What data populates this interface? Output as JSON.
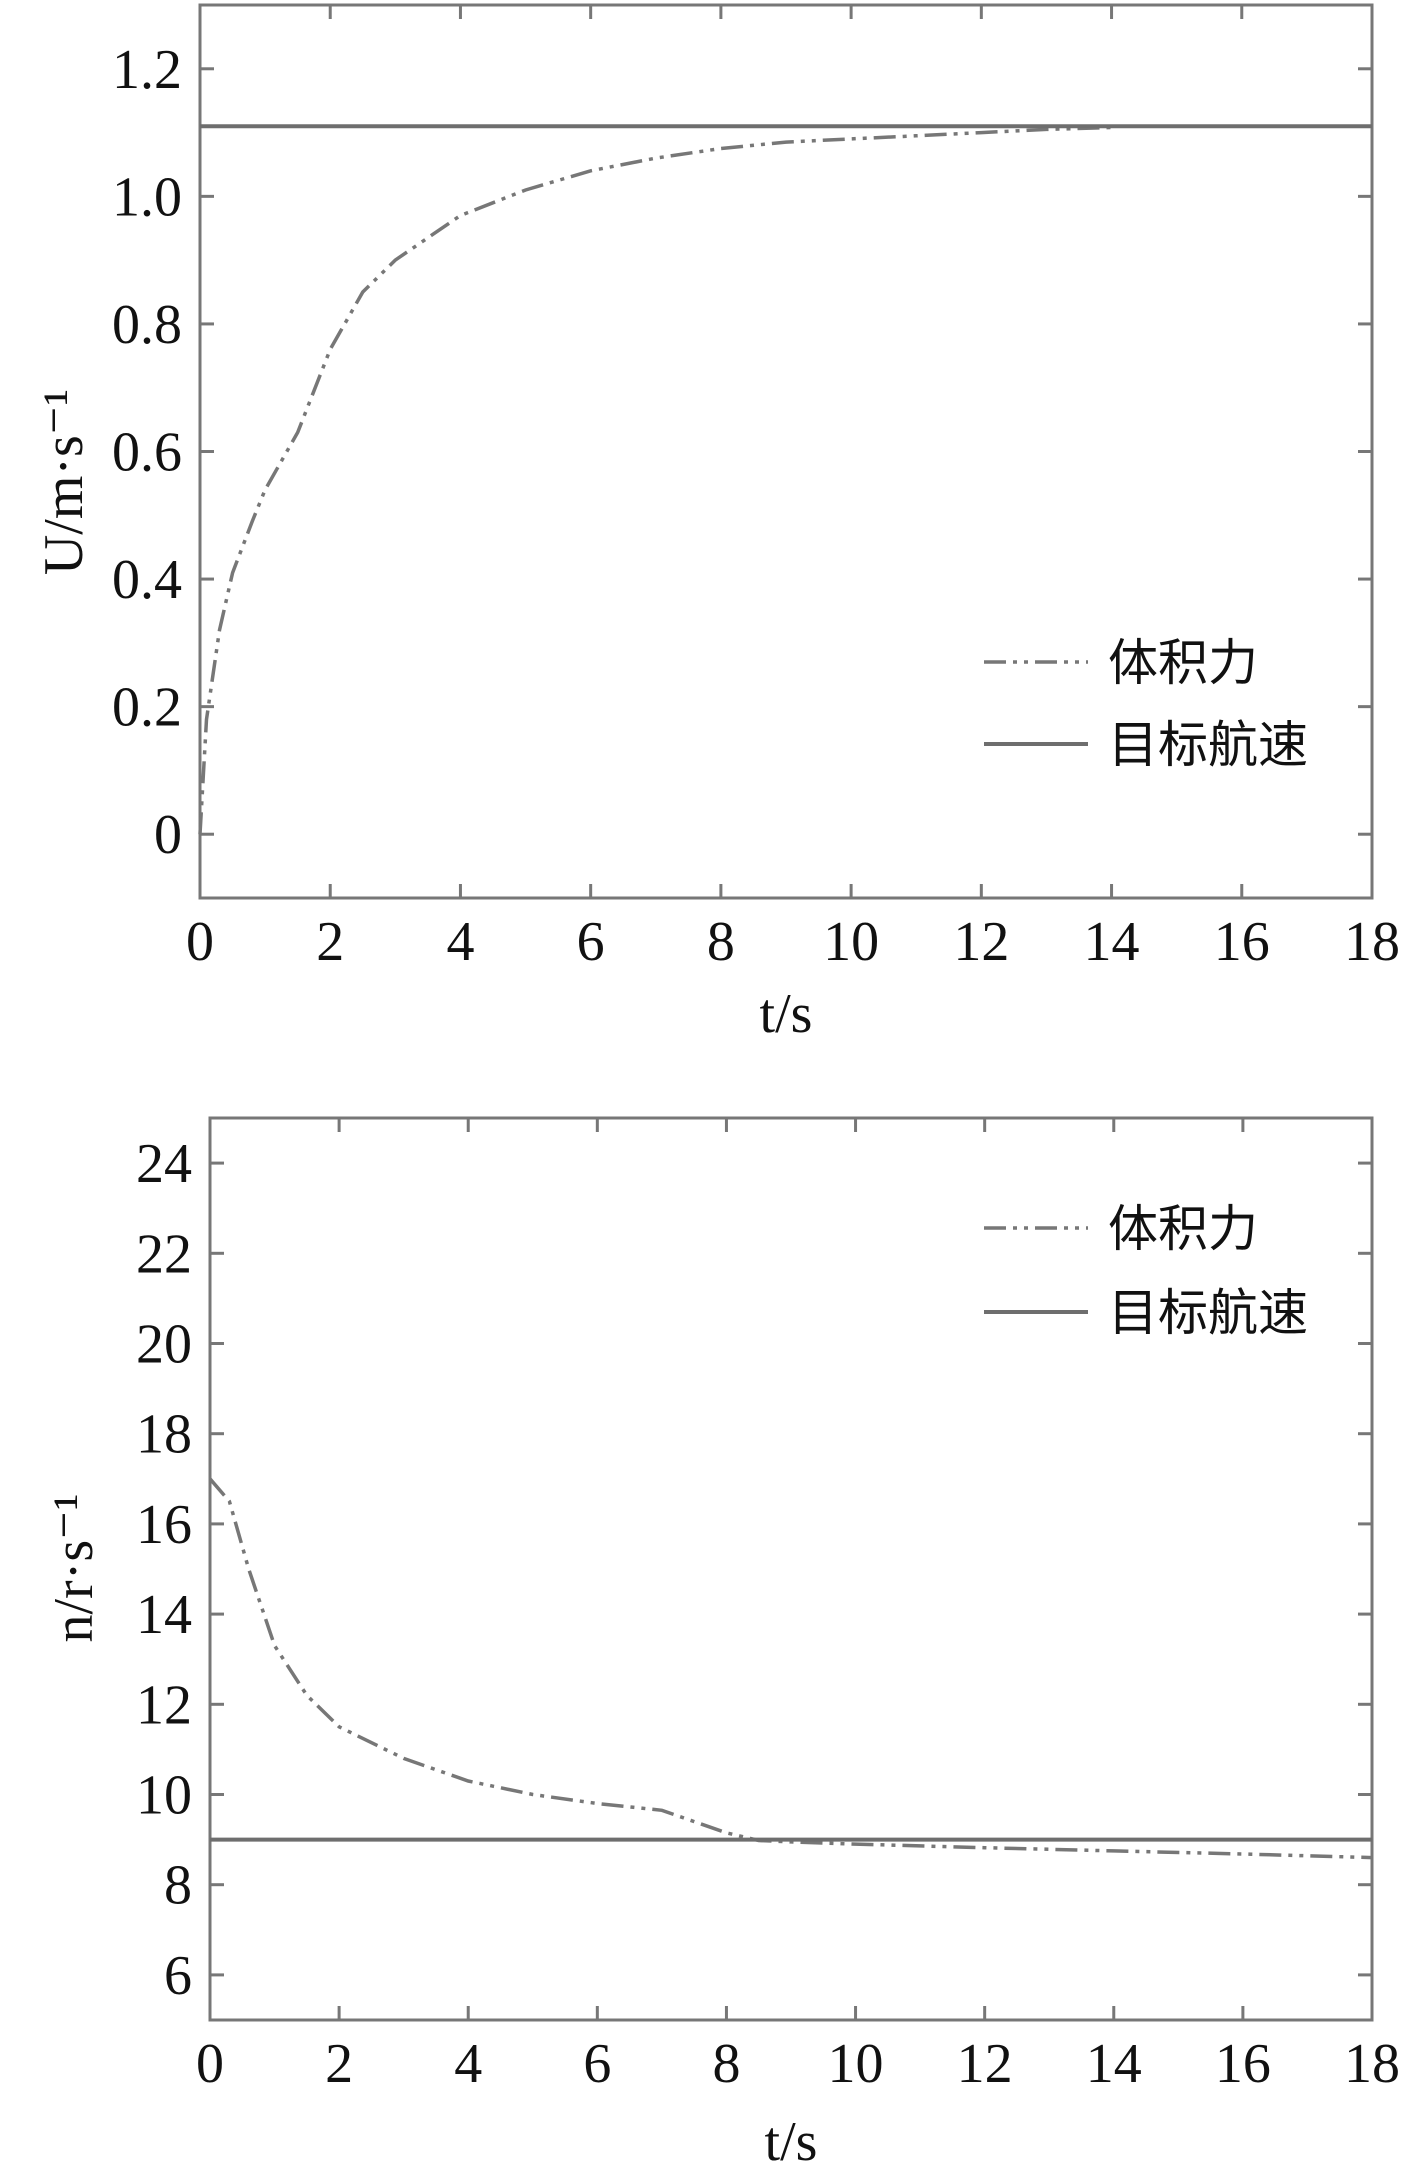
{
  "chart_data": [
    {
      "type": "line",
      "xlabel": "t/s",
      "ylabel": "U/m·s⁻¹",
      "xlim": [
        0,
        18
      ],
      "ylim": [
        -0.1,
        1.3
      ],
      "xticks": [
        "0",
        "2",
        "4",
        "6",
        "8",
        "10",
        "12",
        "14",
        "16",
        "18"
      ],
      "yticks": [
        "0",
        "0.2",
        "0.4",
        "0.6",
        "0.8",
        "1.0",
        "1.2"
      ],
      "legend_position": "lower-right",
      "series": [
        {
          "name": "体积力",
          "style": "dash-dot",
          "x": [
            0,
            0.1,
            0.3,
            0.5,
            0.8,
            1.0,
            1.5,
            2.0,
            2.5,
            3.0,
            4.0,
            5.0,
            6.0,
            7.0,
            8.0,
            9.0,
            10.0,
            11.0,
            12.0,
            13.0,
            14.0
          ],
          "y": [
            0.0,
            0.18,
            0.32,
            0.41,
            0.49,
            0.54,
            0.63,
            0.76,
            0.85,
            0.9,
            0.97,
            1.01,
            1.04,
            1.06,
            1.075,
            1.085,
            1.09,
            1.095,
            1.1,
            1.105,
            1.108
          ]
        },
        {
          "name": "目标航速",
          "style": "solid",
          "x": [
            0,
            18
          ],
          "y": [
            1.11,
            1.11
          ]
        }
      ]
    },
    {
      "type": "line",
      "xlabel": "t/s",
      "ylabel": "n/r·s⁻¹",
      "xlim": [
        0,
        18
      ],
      "ylim": [
        5,
        25
      ],
      "xticks": [
        "0",
        "2",
        "4",
        "6",
        "8",
        "10",
        "12",
        "14",
        "16",
        "18"
      ],
      "yticks": [
        "6",
        "8",
        "10",
        "12",
        "14",
        "16",
        "18",
        "20",
        "22",
        "24"
      ],
      "legend_position": "top-right",
      "series": [
        {
          "name": "体积力",
          "style": "dash-dot",
          "x": [
            0,
            0.3,
            0.6,
            1.0,
            1.5,
            2.0,
            3.0,
            4.0,
            5.0,
            6.0,
            7.0,
            7.5,
            8.0,
            8.5,
            9.0,
            10.0,
            12.0,
            14.0,
            16.0,
            18.0
          ],
          "y": [
            17.0,
            16.5,
            15.0,
            13.3,
            12.2,
            11.5,
            10.8,
            10.3,
            10.0,
            9.8,
            9.65,
            9.4,
            9.15,
            8.98,
            8.95,
            8.9,
            8.82,
            8.75,
            8.68,
            8.6
          ]
        },
        {
          "name": "目标航速",
          "style": "solid",
          "x": [
            0,
            18
          ],
          "y": [
            9.0,
            9.0
          ]
        }
      ]
    }
  ]
}
